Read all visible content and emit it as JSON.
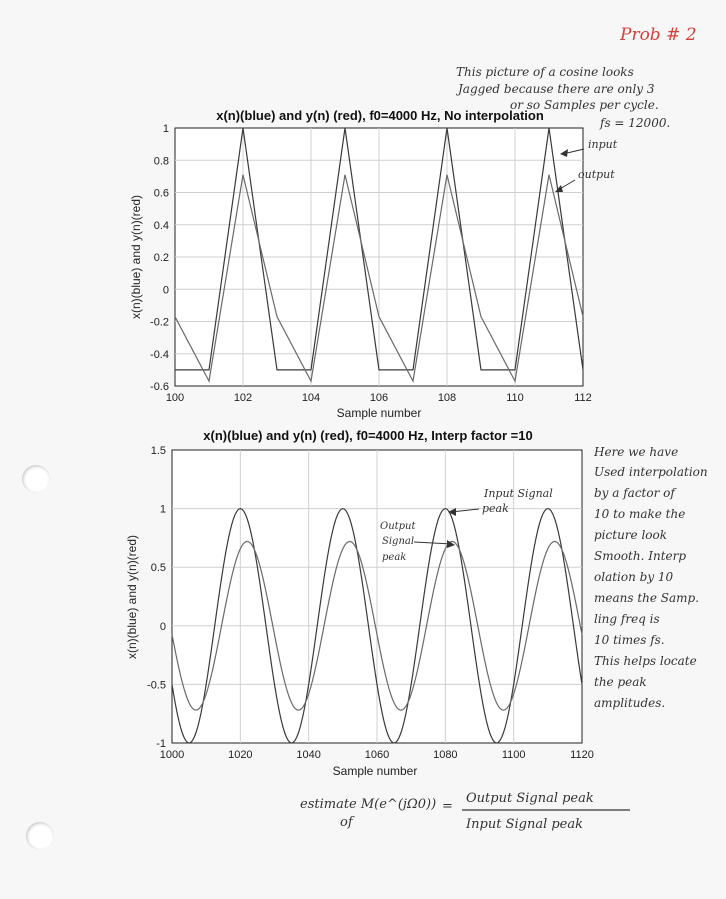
{
  "header": {
    "problem_tag": "Prob # 2"
  },
  "top_note": {
    "lines": [
      "This picture of a cosine looks",
      "Jagged because there are only 3",
      "or so Samples per cycle.",
      "fs = 12000."
    ],
    "input_arrow_label": "input",
    "output_arrow_label": "output"
  },
  "right_note": {
    "lines": [
      "Here we have",
      "Used interpolation",
      "by a factor of",
      "10 to make the",
      "picture look",
      "Smooth. Interp",
      "olation by 10",
      "means the Samp.",
      "ling freq is",
      "10 times fs.",
      "This helps locate",
      "the peak",
      "amplitudes."
    ]
  },
  "annotations": {
    "input_peak": [
      "Input Signal",
      "peak"
    ],
    "output_peak": [
      "Output",
      "Signal",
      "peak"
    ]
  },
  "footer_formula": {
    "lhs_line1": "estimate M(e^(jΩ0))",
    "lhs_line2": "of",
    "equals": "=",
    "numerator": "Output Signal peak",
    "denominator": "Input Signal peak"
  },
  "chart_data": [
    {
      "type": "line",
      "title": "x(n)(blue) and y(n) (red), f0=4000 Hz, No interpolation",
      "xlabel": "Sample number",
      "ylabel": "x(n)(blue) and y(n)(red)",
      "xlim": [
        100,
        112
      ],
      "ylim": [
        -0.6,
        1
      ],
      "xticks": [
        100,
        102,
        104,
        106,
        108,
        110,
        112
      ],
      "yticks": [
        -0.6,
        -0.4,
        -0.2,
        0,
        0.2,
        0.4,
        0.6,
        0.8,
        1
      ],
      "grid": true,
      "series": [
        {
          "name": "x(n)(blue)",
          "color": "#3a3a3a",
          "x": [
            100,
            101,
            102,
            103,
            104,
            105,
            106,
            107,
            108,
            109,
            110,
            111,
            112
          ],
          "y": [
            -0.5,
            -0.5,
            1,
            -0.5,
            -0.5,
            1,
            -0.5,
            -0.5,
            1,
            -0.5,
            -0.5,
            1,
            -0.5
          ]
        },
        {
          "name": "y(n) (red)",
          "color": "#6a6a6a",
          "x": [
            100,
            101,
            102,
            103,
            104,
            105,
            106,
            107,
            108,
            109,
            110,
            111,
            112
          ],
          "y": [
            -0.17,
            -0.57,
            0.71,
            -0.17,
            -0.57,
            0.71,
            -0.17,
            -0.57,
            0.71,
            -0.17,
            -0.57,
            0.71,
            -0.17
          ]
        }
      ]
    },
    {
      "type": "line",
      "title": "x(n)(blue) and y(n) (red), f0=4000 Hz, Interp factor =10",
      "xlabel": "Sample number",
      "ylabel": "x(n)(blue) and y(n)(red)",
      "xlim": [
        1000,
        1120
      ],
      "ylim": [
        -1,
        1.5
      ],
      "xticks": [
        1000,
        1020,
        1040,
        1060,
        1080,
        1100,
        1120
      ],
      "yticks": [
        -1,
        -0.5,
        0,
        0.5,
        1,
        1.5
      ],
      "grid": true,
      "series": [
        {
          "name": "x(n)(blue)",
          "color": "#3a3a3a",
          "function": "cosine",
          "amplitude": 1,
          "period": 30,
          "peak_at": 1020
        },
        {
          "name": "y(n) (red)",
          "color": "#6a6a6a",
          "function": "cosine",
          "amplitude": 0.72,
          "period": 30,
          "peak_at": 1022
        }
      ]
    }
  ]
}
